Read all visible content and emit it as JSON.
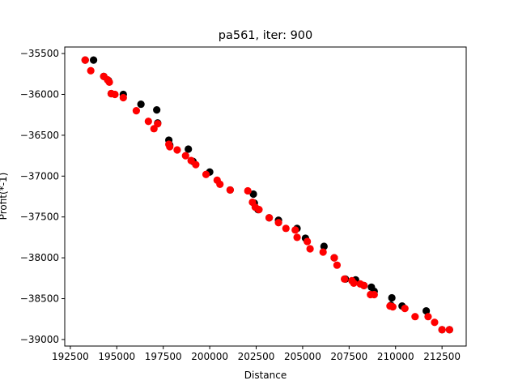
{
  "chart_data": {
    "type": "scatter",
    "title": "pa561, iter: 900",
    "xlabel": "Distance",
    "ylabel": "Profit(*-1)",
    "xlim": [
      192200,
      213800
    ],
    "ylim": [
      -39080,
      -35420
    ],
    "xticks": [
      192500,
      195000,
      197500,
      200000,
      202500,
      205000,
      207500,
      210000,
      212500
    ],
    "yticks": [
      -35500,
      -36000,
      -36500,
      -37000,
      -37500,
      -38000,
      -38500,
      -39000
    ],
    "grid": false,
    "series": [
      {
        "color": "#000000",
        "points": [
          [
            193300,
            -35580
          ],
          [
            193750,
            -35580
          ],
          [
            194300,
            -35780
          ],
          [
            194550,
            -35830
          ],
          [
            194700,
            -35990
          ],
          [
            195350,
            -36000
          ],
          [
            196300,
            -36120
          ],
          [
            197150,
            -36190
          ],
          [
            197200,
            -36350
          ],
          [
            197800,
            -36560
          ],
          [
            197850,
            -36620
          ],
          [
            198850,
            -36670
          ],
          [
            199100,
            -36820
          ],
          [
            200000,
            -36950
          ],
          [
            201100,
            -37170
          ],
          [
            202350,
            -37220
          ],
          [
            202400,
            -37330
          ],
          [
            202600,
            -37410
          ],
          [
            203200,
            -37510
          ],
          [
            203700,
            -37540
          ],
          [
            204700,
            -37640
          ],
          [
            205150,
            -37760
          ],
          [
            206150,
            -37860
          ],
          [
            206700,
            -38000
          ],
          [
            207300,
            -38260
          ],
          [
            207850,
            -38270
          ],
          [
            208300,
            -38340
          ],
          [
            208700,
            -38360
          ],
          [
            208850,
            -38410
          ],
          [
            209750,
            -38580
          ],
          [
            209800,
            -38490
          ],
          [
            210350,
            -38590
          ],
          [
            211650,
            -38650
          ],
          [
            212500,
            -38880
          ],
          [
            212900,
            -38880
          ]
        ]
      },
      {
        "color": "#ff0000",
        "points": [
          [
            193300,
            -35580
          ],
          [
            193600,
            -35710
          ],
          [
            194300,
            -35780
          ],
          [
            194500,
            -35820
          ],
          [
            194600,
            -35850
          ],
          [
            194700,
            -35990
          ],
          [
            194900,
            -36000
          ],
          [
            195350,
            -36040
          ],
          [
            196050,
            -36200
          ],
          [
            196700,
            -36330
          ],
          [
            197000,
            -36420
          ],
          [
            197200,
            -36360
          ],
          [
            197800,
            -36610
          ],
          [
            197850,
            -36640
          ],
          [
            198250,
            -36680
          ],
          [
            198700,
            -36750
          ],
          [
            199000,
            -36810
          ],
          [
            199250,
            -36860
          ],
          [
            199800,
            -36980
          ],
          [
            200400,
            -37050
          ],
          [
            200550,
            -37100
          ],
          [
            201100,
            -37170
          ],
          [
            202050,
            -37180
          ],
          [
            202300,
            -37320
          ],
          [
            202450,
            -37380
          ],
          [
            202650,
            -37410
          ],
          [
            203200,
            -37510
          ],
          [
            203700,
            -37570
          ],
          [
            204100,
            -37640
          ],
          [
            204600,
            -37660
          ],
          [
            204700,
            -37750
          ],
          [
            205250,
            -37800
          ],
          [
            205400,
            -37890
          ],
          [
            206100,
            -37930
          ],
          [
            206700,
            -38000
          ],
          [
            206850,
            -38090
          ],
          [
            207250,
            -38260
          ],
          [
            207650,
            -38280
          ],
          [
            207750,
            -38310
          ],
          [
            208100,
            -38320
          ],
          [
            208300,
            -38340
          ],
          [
            208650,
            -38450
          ],
          [
            208850,
            -38450
          ],
          [
            209700,
            -38590
          ],
          [
            209850,
            -38600
          ],
          [
            210500,
            -38620
          ],
          [
            211050,
            -38720
          ],
          [
            211750,
            -38720
          ],
          [
            212100,
            -38790
          ],
          [
            212500,
            -38880
          ],
          [
            212900,
            -38880
          ]
        ]
      }
    ]
  }
}
